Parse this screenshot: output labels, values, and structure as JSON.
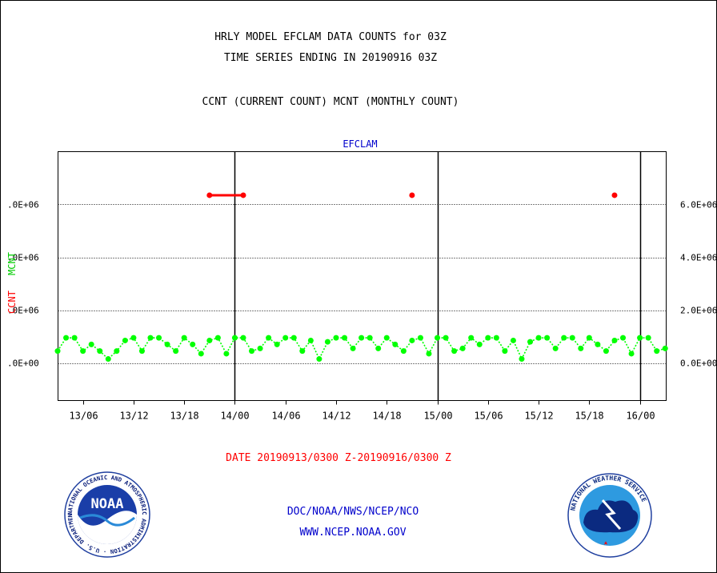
{
  "header": {
    "title": "HRLY MODEL EFCLAM DATA COUNTS for 03Z",
    "subtitle": "TIME SERIES ENDING IN 20190916 03Z",
    "legend_text": "CCNT (CURRENT COUNT) MCNT (MONTHLY COUNT)"
  },
  "chart_data": {
    "type": "line",
    "title": "EFCLAM",
    "xlabel": "",
    "ylabel_left": [
      "CCNT",
      "MCNT"
    ],
    "x_tick_labels": [
      "13/06",
      "13/12",
      "13/18",
      "14/00",
      "14/06",
      "14/12",
      "14/18",
      "15/00",
      "15/06",
      "15/12",
      "15/18",
      "16/00"
    ],
    "y_tick_labels_left": [
      ".0E+00",
      ".0E+06",
      ".0E+06",
      ".0E+06"
    ],
    "y_tick_labels_right": [
      "0.0E+00",
      "2.0E+06",
      "4.0E+06",
      "6.0E+06"
    ],
    "y_ticks": [
      0,
      2000000,
      4000000,
      6000000
    ],
    "ylim": [
      -1400000,
      8000000
    ],
    "x_range_hours": [
      0,
      72
    ],
    "grid": true,
    "day_boundaries_hours": [
      21,
      45,
      69
    ],
    "colors": {
      "ccnt": "#ff0000",
      "mcnt": "#00ff00",
      "axis": "#000000",
      "title": "#0000cc"
    },
    "series": [
      {
        "name": "CCNT",
        "x_hours": [
          18,
          19,
          20,
          21,
          22,
          42,
          66
        ],
        "values": [
          6350000,
          6350000,
          6350000,
          6350000,
          6350000,
          6350000,
          6350000
        ]
      },
      {
        "name": "MCNT",
        "x_hours": [
          0,
          1,
          2,
          3,
          4,
          5,
          6,
          7,
          8,
          9,
          10,
          11,
          12,
          13,
          14,
          15,
          16,
          17,
          18,
          19,
          20,
          21,
          22,
          23,
          24,
          25,
          26,
          27,
          28,
          29,
          30,
          31,
          32,
          33,
          34,
          35,
          36,
          37,
          38,
          39,
          40,
          41,
          42,
          43,
          44,
          45,
          46,
          47,
          48,
          49,
          50,
          51,
          52,
          53,
          54,
          55,
          56,
          57,
          58,
          59,
          60,
          61,
          62,
          63,
          64,
          65,
          66,
          67,
          68,
          69,
          70,
          71,
          72
        ],
        "values": [
          450000,
          950000,
          950000,
          450000,
          700000,
          450000,
          150000,
          450000,
          850000,
          950000,
          450000,
          950000,
          950000,
          700000,
          450000,
          950000,
          700000,
          350000,
          850000,
          950000,
          350000,
          950000,
          950000,
          450000,
          550000,
          950000,
          700000,
          950000,
          950000,
          450000,
          850000,
          150000,
          800000,
          950000,
          950000,
          550000,
          950000,
          950000,
          550000,
          950000,
          700000,
          450000,
          850000,
          950000,
          350000,
          950000,
          950000,
          450000,
          550000,
          950000,
          700000,
          950000,
          950000,
          450000,
          850000,
          150000,
          800000,
          950000,
          950000,
          550000,
          950000,
          950000,
          550000,
          950000,
          700000,
          450000,
          850000,
          950000,
          350000,
          950000,
          950000,
          450000,
          550000
        ]
      }
    ]
  },
  "footer": {
    "date_range": "DATE 20190913/0300 Z-20190916/0300 Z",
    "org_line": "DOC/NOAA/NWS/NCEP/NCO",
    "url": "WWW.NCEP.NOAA.GOV",
    "noaa_logo_text": "NOAA",
    "noaa_ring_text": "NATIONAL OCEANIC AND ATMOSPHERIC ADMINISTRATION · U.S. DEPARTMENT OF COMMERCE ·",
    "nws_ring_text": "NATIONAL WEATHER SERVICE"
  }
}
